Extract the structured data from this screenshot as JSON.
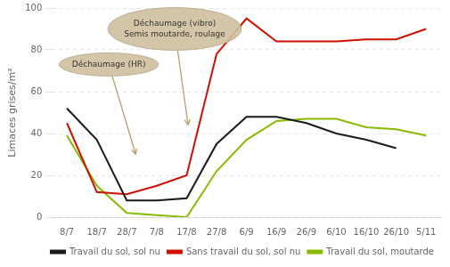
{
  "chart_data": {
    "type": "line",
    "ylabel": "Limaces grises/m²",
    "categories": [
      "8/7",
      "18/7",
      "28/7",
      "7/8",
      "17/8",
      "27/8",
      "6/9",
      "16/9",
      "26/9",
      "6/10",
      "16/10",
      "26/10",
      "5/11"
    ],
    "series": [
      {
        "name": "Travail du sol, sol nu",
        "color": "#1a1a1a",
        "values": [
          52,
          37,
          8,
          8,
          9,
          35,
          48,
          48,
          45,
          40,
          37,
          33,
          null
        ]
      },
      {
        "name": "Sans travail du sol, sol nu",
        "color": "#cc1100",
        "values": [
          45,
          12,
          11,
          15,
          20,
          78,
          95,
          84,
          84,
          84,
          85,
          85,
          90
        ]
      },
      {
        "name": "Travail du sol, moutarde",
        "color": "#88bb00",
        "values": [
          39,
          15,
          2,
          1,
          0,
          22,
          37,
          46,
          47,
          47,
          43,
          42,
          39
        ]
      }
    ],
    "ylim": [
      0,
      100
    ],
    "yticks": [
      0,
      20,
      40,
      60,
      80,
      100
    ],
    "grid": true,
    "legend": "lower right",
    "annotations": [
      {
        "text": "Déchaumage (vibro)\nSemis moutarde, roulage",
        "x": 3.6,
        "y": 90,
        "arrow_x": 4.05,
        "arrow_y": 44
      },
      {
        "text": "Déchaumage (HR)",
        "x": 1.4,
        "y": 73,
        "arrow_x": 2.3,
        "arrow_y": 30
      }
    ]
  }
}
